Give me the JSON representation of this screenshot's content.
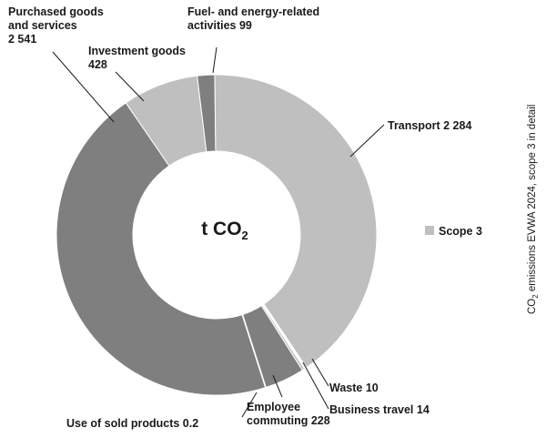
{
  "chart_data": {
    "type": "pie",
    "style": "donut",
    "center_label": {
      "text": "t CO",
      "sub": "2"
    },
    "title": {
      "prefix": "CO",
      "sub": "2",
      "rest": " emissions EVWA 2024, scope 3 in detail"
    },
    "legend": {
      "label": "Scope 3",
      "position": "right"
    },
    "slices": [
      {
        "name": "Fuel- and energy-related activities",
        "lines": [
          "Fuel- and energy-related",
          "activities  99"
        ],
        "value": 99,
        "color": "#7f7f7f"
      },
      {
        "name": "Transport",
        "lines": [
          "Transport   2 284"
        ],
        "value": 2284,
        "color": "#bfbfbf"
      },
      {
        "name": "Waste",
        "lines": [
          "Waste  10"
        ],
        "value": 10,
        "color": "#7f7f7f"
      },
      {
        "name": "Business travel",
        "lines": [
          "Business travel  14"
        ],
        "value": 14,
        "color": "#bfbfbf"
      },
      {
        "name": "Employee commuting",
        "lines": [
          "Employee",
          "commuting  228"
        ],
        "value": 228,
        "color": "#7f7f7f"
      },
      {
        "name": "Use of sold products",
        "lines": [
          "Use of sold products 0.2"
        ],
        "value": 0.2,
        "color": "#bfbfbf"
      },
      {
        "name": "Purchased goods and services",
        "lines": [
          "Purchased goods",
          "and services",
          "2 541"
        ],
        "value": 2541,
        "color": "#7f7f7f"
      },
      {
        "name": "Investment goods",
        "lines": [
          "Investment goods",
          "428"
        ],
        "value": 428,
        "color": "#bfbfbf"
      }
    ]
  }
}
